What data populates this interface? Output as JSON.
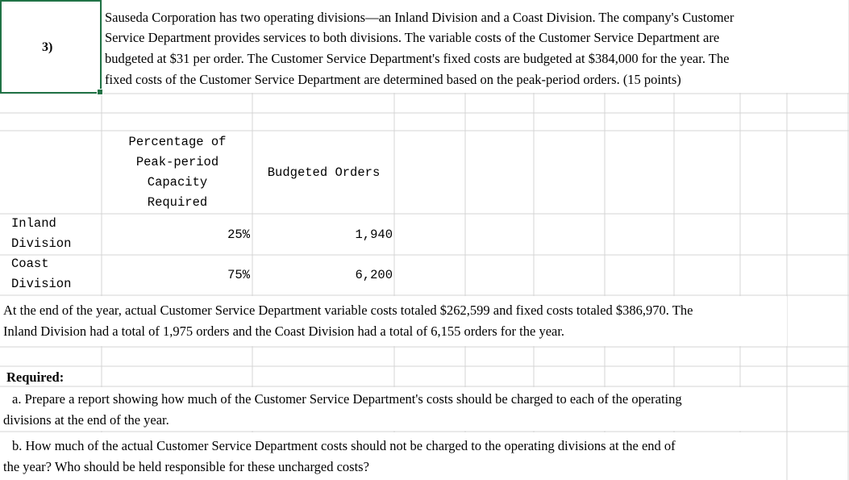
{
  "question_number": "3)",
  "intro_lines": [
    "Sauseda Corporation has two operating divisions—an Inland Division and a Coast Division. The company's Customer",
    "Service Department provides services to both divisions. The variable costs of the Customer Service Department are",
    "budgeted at $31 per order. The Customer Service Department's fixed costs are budgeted at $384,000 for the year. The",
    "fixed costs of the Customer Service Department are determined based on the peak-period orders. (15 points)"
  ],
  "table": {
    "header_percentage_lines": [
      "Percentage of",
      "Peak-period",
      "Capacity",
      "Required"
    ],
    "header_orders": "Budgeted Orders",
    "rows": [
      {
        "name_lines": [
          "Inland",
          "Division"
        ],
        "percentage": "25%",
        "orders": "1,940"
      },
      {
        "name_lines": [
          "Coast",
          "Division"
        ],
        "percentage": "75%",
        "orders": "6,200"
      }
    ]
  },
  "actual_lines": [
    "At the end of the year, actual Customer Service Department variable costs totaled $262,599 and fixed costs totaled $386,970. The",
    "Inland Division had a total of 1,975 orders and the Coast Division had a total of 6,155 orders for the year."
  ],
  "required_label": "Required:",
  "part_a_lines": [
    "a. Prepare a report showing how much of the Customer Service Department's costs should be charged to each of the operating",
    "divisions at the end of the year."
  ],
  "part_b_lines": [
    "b. How much of the actual Customer Service Department costs should not be charged to the operating divisions at the end of",
    "the year? Who should be held responsible for these uncharged costs?"
  ]
}
